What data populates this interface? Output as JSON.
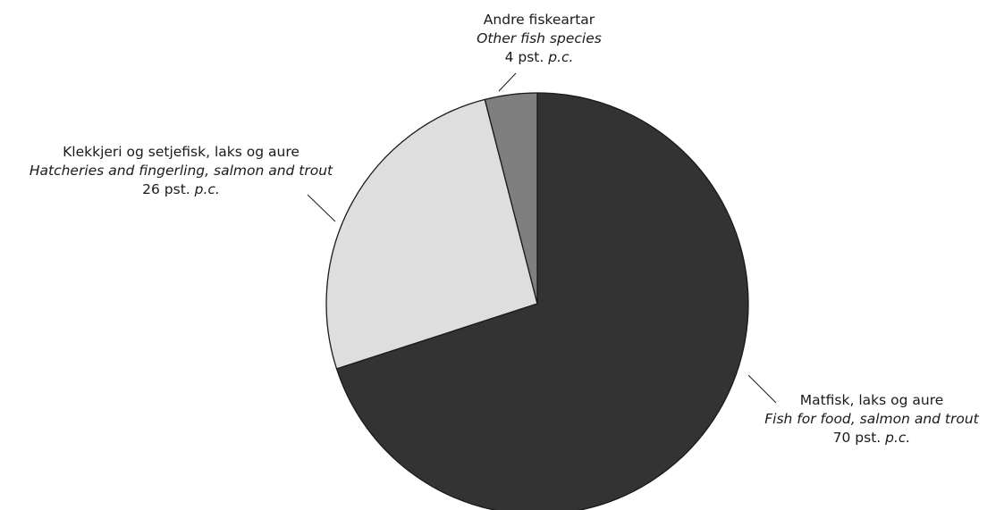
{
  "chart_data": {
    "type": "pie",
    "title": "",
    "unit_label": "pst.",
    "unit_label_en": "p.c.",
    "start_angle": "12 o'clock",
    "direction": "clockwise",
    "legend": "none (slices labeled directly with leader lines)",
    "slices": [
      {
        "label_no": "Matfisk, laks og aure",
        "label_en": "Fish for food, salmon and trout",
        "value": 70,
        "value_text_no": "70 pst.",
        "value_text_en": "p.c.",
        "color": "#333333"
      },
      {
        "label_no": "Klekkjeri og setjefisk, laks og aure",
        "label_en": "Hatcheries and fingerling, salmon and trout",
        "value": 26,
        "value_text_no": "26 pst.",
        "value_text_en": "p.c.",
        "color": "#dedede"
      },
      {
        "label_no": "Andre fiskeartar",
        "label_en": "Other fish species",
        "value": 4,
        "value_text_no": "4 pst.",
        "value_text_en": "p.c.",
        "color": "#7f7f7f"
      }
    ]
  }
}
